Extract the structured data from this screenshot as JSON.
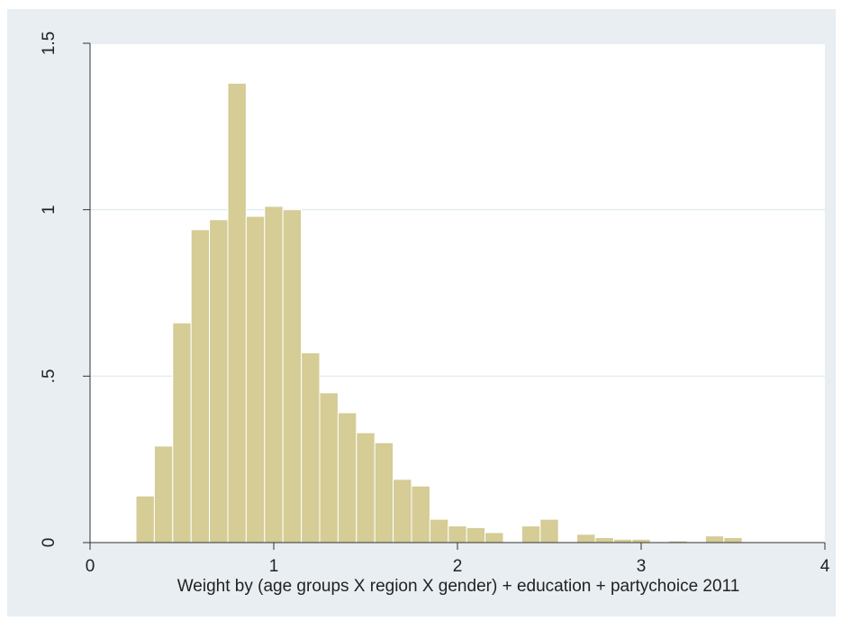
{
  "chart_data": {
    "type": "bar",
    "subtype": "histogram",
    "title": "",
    "xlabel": "Weight by (age groups X region X gender) + education + partychoice 2011",
    "ylabel": "",
    "xlim": [
      0,
      4
    ],
    "ylim": [
      0,
      1.5
    ],
    "x_ticks": [
      0,
      1,
      2,
      3,
      4
    ],
    "x_tick_labels": [
      "0",
      "1",
      "2",
      "3",
      "4"
    ],
    "y_ticks": [
      0,
      0.5,
      1,
      1.5
    ],
    "y_tick_labels": [
      "0",
      ".5",
      "1",
      "1.5"
    ],
    "grid": "horizontal",
    "bin_width": 0.1,
    "bins": [
      {
        "start": 0.25,
        "value": 0.14
      },
      {
        "start": 0.35,
        "value": 0.29
      },
      {
        "start": 0.45,
        "value": 0.66
      },
      {
        "start": 0.55,
        "value": 0.94
      },
      {
        "start": 0.65,
        "value": 0.97
      },
      {
        "start": 0.75,
        "value": 1.38
      },
      {
        "start": 0.85,
        "value": 0.98
      },
      {
        "start": 0.95,
        "value": 1.01
      },
      {
        "start": 1.05,
        "value": 1.0
      },
      {
        "start": 1.15,
        "value": 0.57
      },
      {
        "start": 1.25,
        "value": 0.45
      },
      {
        "start": 1.35,
        "value": 0.39
      },
      {
        "start": 1.45,
        "value": 0.33
      },
      {
        "start": 1.55,
        "value": 0.3
      },
      {
        "start": 1.65,
        "value": 0.19
      },
      {
        "start": 1.75,
        "value": 0.17
      },
      {
        "start": 1.85,
        "value": 0.07
      },
      {
        "start": 1.95,
        "value": 0.05
      },
      {
        "start": 2.05,
        "value": 0.045
      },
      {
        "start": 2.15,
        "value": 0.03
      },
      {
        "start": 2.25,
        "value": 0.0
      },
      {
        "start": 2.35,
        "value": 0.05
      },
      {
        "start": 2.45,
        "value": 0.07
      },
      {
        "start": 2.55,
        "value": 0.0
      },
      {
        "start": 2.65,
        "value": 0.025
      },
      {
        "start": 2.75,
        "value": 0.015
      },
      {
        "start": 2.85,
        "value": 0.01
      },
      {
        "start": 2.95,
        "value": 0.01
      },
      {
        "start": 3.05,
        "value": 0.0
      },
      {
        "start": 3.15,
        "value": 0.005
      },
      {
        "start": 3.25,
        "value": 0.0
      },
      {
        "start": 3.35,
        "value": 0.02
      },
      {
        "start": 3.45,
        "value": 0.015
      }
    ],
    "colors": {
      "bar_fill": "#d5cc96",
      "bar_stroke": "#ffffff",
      "plot_bg": "#ffffff",
      "outer_bg": "#e8eef2",
      "grid": "#e4ecf0",
      "axis": "#333333"
    }
  }
}
